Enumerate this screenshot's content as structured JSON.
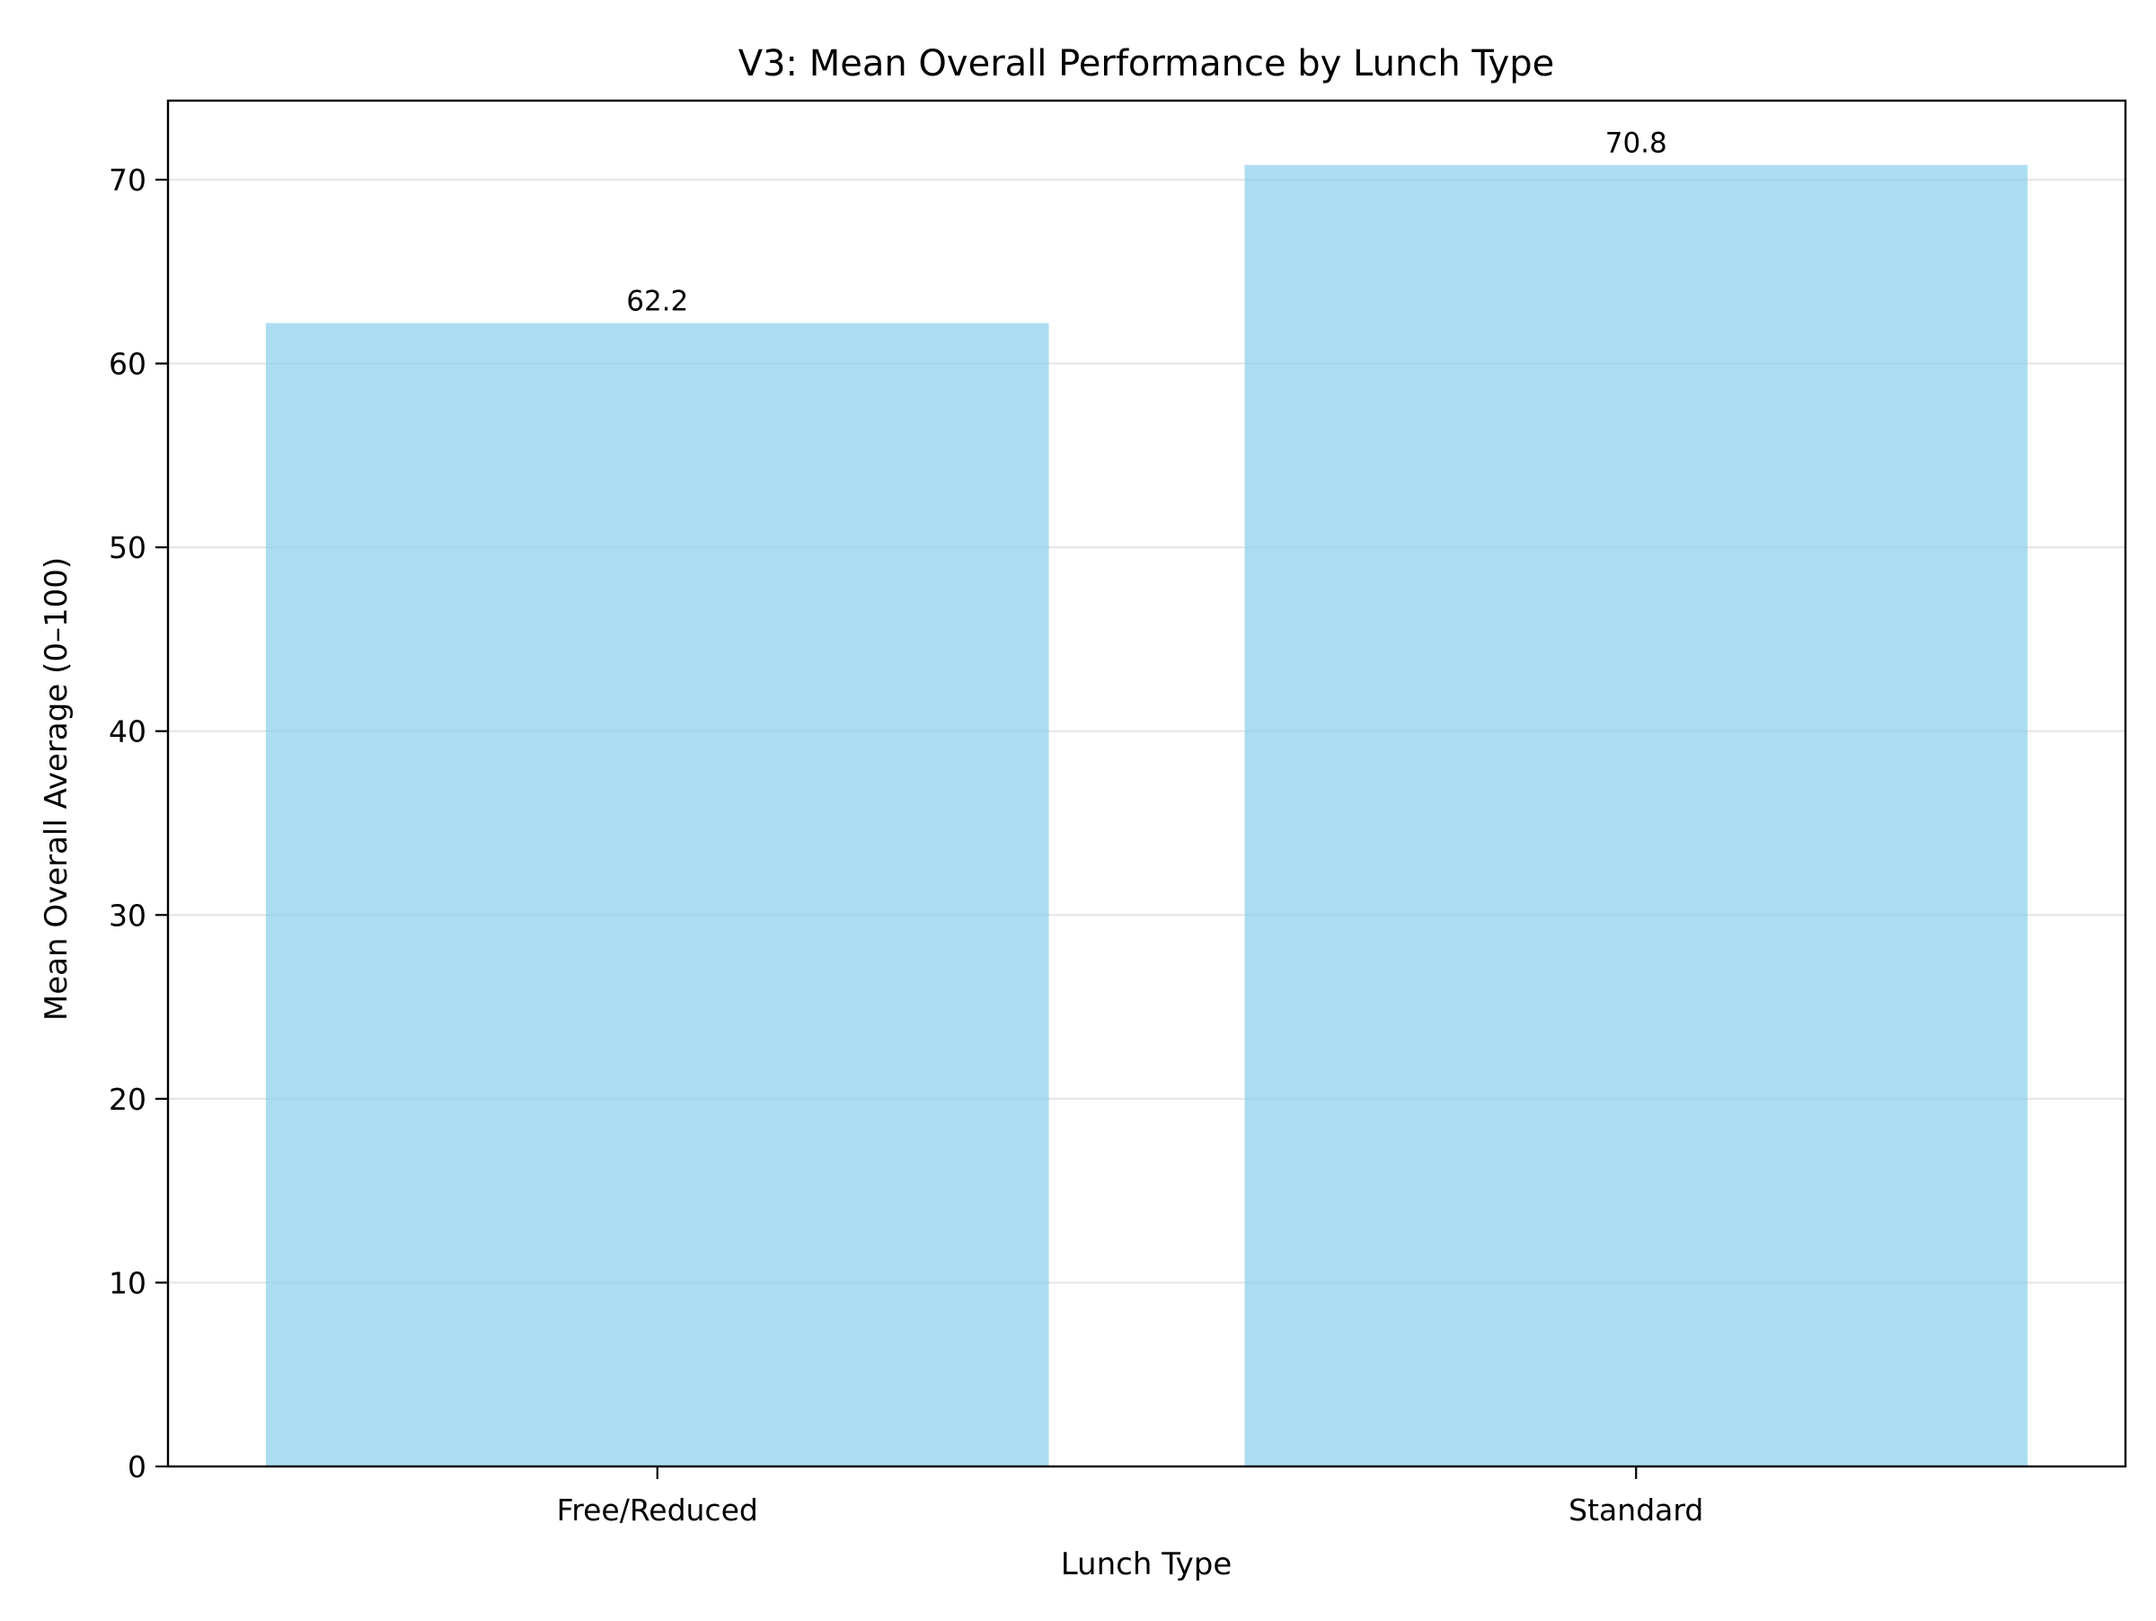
{
  "chart_data": {
    "type": "bar",
    "title": "V3: Mean Overall Performance by Lunch Type",
    "xlabel": "Lunch Type",
    "ylabel": "Mean Overall Average (0–100)",
    "categories": [
      "Free/Reduced",
      "Standard"
    ],
    "values": [
      62.2,
      70.8
    ],
    "data_labels": [
      "62.2",
      "70.8"
    ],
    "ylim": [
      0,
      74.3
    ],
    "yticks": [
      0,
      10,
      20,
      30,
      40,
      50,
      60,
      70
    ],
    "ytick_labels": [
      "0",
      "10",
      "20",
      "30",
      "40",
      "50",
      "60",
      "70"
    ],
    "grid": "horizontal",
    "legend": "none",
    "colors": {
      "bar": "#87ceeb",
      "bar_opacity": 0.7,
      "grid": "#e6e6e6",
      "axis": "#000000"
    }
  }
}
